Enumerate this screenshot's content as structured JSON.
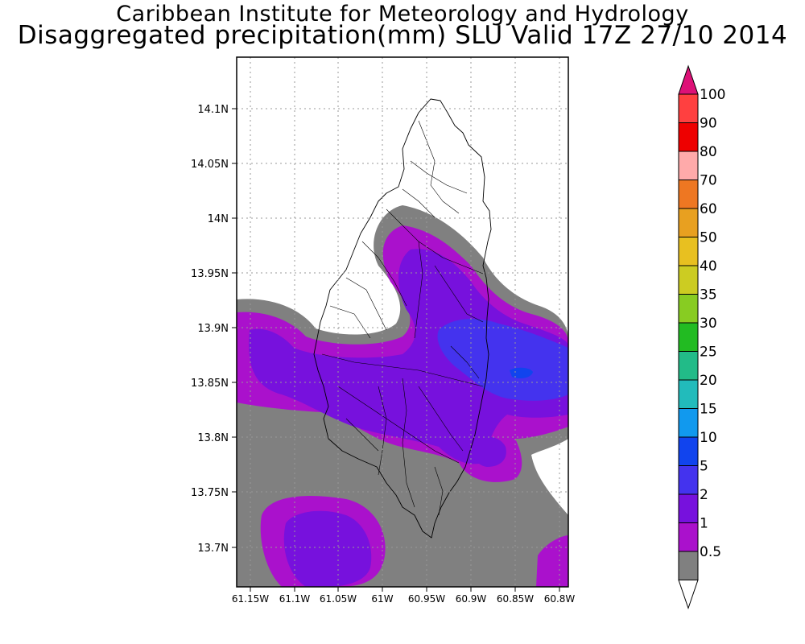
{
  "header": {
    "line1": "Caribbean Institute for Meteorology and Hydrology",
    "line2": "Disaggregated precipitation(mm) SLU Valid 17Z 27/10 2014"
  },
  "map": {
    "lat_labels": [
      "14.1N",
      "14.05N",
      "14N",
      "13.95N",
      "13.9N",
      "13.85N",
      "13.8N",
      "13.75N",
      "13.7N"
    ],
    "lon_labels": [
      "61.15W",
      "61.1W",
      "61.05W",
      "61W",
      "60.95W",
      "60.9W",
      "60.85W",
      "60.8W"
    ],
    "lat_range": [
      13.665,
      14.15
    ],
    "lon_range": [
      -61.165,
      -60.79
    ],
    "grid": "dotted"
  },
  "colorbar": {
    "labels": [
      "100",
      "90",
      "80",
      "70",
      "60",
      "50",
      "40",
      "35",
      "30",
      "25",
      "20",
      "15",
      "10",
      "5",
      "2",
      "1",
      "0.5"
    ],
    "colors_top_to_bottom": [
      "#ff4040",
      "#ee0000",
      "#ffaaaa",
      "#ee7722",
      "#e8a020",
      "#e8c020",
      "#cccc22",
      "#88cc22",
      "#22bb22",
      "#22bb88",
      "#22bbbb",
      "#1199ee",
      "#1144ee",
      "#4433ee",
      "#7711dd",
      "#aa11cc",
      "#808080"
    ],
    "over_color": "#dd1177",
    "under_color": "#ffffff"
  },
  "precip_colors": {
    "c0_5": "#808080",
    "c1": "#aa11cc",
    "c2": "#7711dd",
    "c5": "#4433ee",
    "c10": "#1144ee"
  }
}
